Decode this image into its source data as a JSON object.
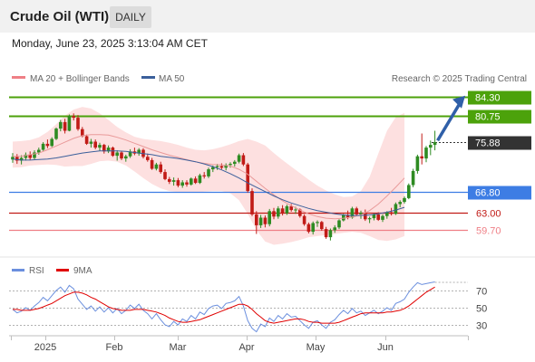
{
  "header": {
    "title": "Crude Oil (WTI)",
    "period": "DAILY",
    "datetime": "Monday, June 23, 2025 3:13:04 AM CET"
  },
  "legend": {
    "ma20": "MA 20 + Bollinger Bands",
    "ma50": "MA 50",
    "credit": "Research © 2025 Trading Central",
    "rsi": "RSI",
    "ma9": "9MA"
  },
  "colors": {
    "green": "#4ca20b",
    "blue": "#3d7de4",
    "pink": "#ef7f86",
    "red": "#c11b17",
    "ma50": "#3b5f9b",
    "band": "#fde0e0",
    "arrow": "#2f5fa8",
    "rsi": "#6b8fde",
    "ma9": "#e00000"
  },
  "chart_data": [
    {
      "type": "candlestick",
      "title": "Crude Oil (WTI)",
      "period": "DAILY",
      "x_ticks": [
        "2025",
        "Feb",
        "Mar",
        "Apr",
        "May",
        "Jun"
      ],
      "last_price": 75.88,
      "levels": [
        {
          "label": "84.30",
          "value": 84.3,
          "kind": "resistance",
          "color": "#4ca20b",
          "boxed": true
        },
        {
          "label": "80.75",
          "value": 80.75,
          "kind": "resistance",
          "color": "#4ca20b",
          "boxed": true
        },
        {
          "label": "75.88",
          "value": 75.88,
          "kind": "last",
          "color": "#333333",
          "boxed": true
        },
        {
          "label": "66.80",
          "value": 66.8,
          "kind": "pivot",
          "color": "#3d7de4",
          "boxed": true
        },
        {
          "label": "63.00",
          "value": 63.0,
          "kind": "support",
          "color": "#c11b17",
          "boxed": false
        },
        {
          "label": "59.70",
          "value": 59.7,
          "kind": "support",
          "color": "#ef7f86",
          "boxed": false
        }
      ],
      "series": [
        {
          "name": "MA 20 + Bollinger Bands"
        },
        {
          "name": "MA 50"
        }
      ],
      "candles": [
        [
          72.7,
          73.9,
          72.1,
          73.2
        ],
        [
          73.2,
          73.7,
          71.9,
          72.5
        ],
        [
          72.5,
          73.5,
          71.8,
          73.0
        ],
        [
          73.0,
          74.0,
          72.5,
          73.6
        ],
        [
          73.6,
          74.2,
          72.6,
          73.0
        ],
        [
          73.0,
          74.4,
          72.7,
          74.0
        ],
        [
          74.0,
          74.9,
          73.6,
          74.5
        ],
        [
          74.5,
          75.9,
          74.3,
          75.6
        ],
        [
          75.6,
          76.4,
          74.8,
          75.2
        ],
        [
          75.2,
          76.8,
          75.0,
          76.5
        ],
        [
          76.5,
          78.6,
          76.3,
          78.4
        ],
        [
          78.4,
          80.0,
          77.9,
          79.6
        ],
        [
          79.6,
          80.2,
          77.5,
          78.0
        ],
        [
          78.0,
          81.0,
          77.9,
          80.7
        ],
        [
          80.7,
          81.2,
          79.9,
          80.4
        ],
        [
          80.4,
          80.9,
          78.0,
          78.3
        ],
        [
          78.3,
          78.7,
          76.8,
          77.0
        ],
        [
          77.0,
          77.3,
          75.4,
          75.6
        ],
        [
          75.6,
          76.5,
          74.9,
          76.0
        ],
        [
          76.0,
          76.4,
          74.6,
          74.9
        ],
        [
          74.9,
          75.8,
          74.3,
          75.4
        ],
        [
          75.4,
          75.6,
          73.8,
          74.2
        ],
        [
          74.2,
          75.3,
          73.9,
          74.9
        ],
        [
          74.9,
          75.1,
          73.2,
          73.4
        ],
        [
          73.4,
          74.4,
          72.5,
          74.0
        ],
        [
          74.0,
          74.3,
          72.6,
          72.9
        ],
        [
          72.9,
          73.6,
          72.3,
          73.3
        ],
        [
          73.3,
          74.6,
          73.0,
          74.2
        ],
        [
          74.2,
          74.9,
          73.5,
          73.8
        ],
        [
          73.8,
          74.8,
          73.4,
          74.5
        ],
        [
          74.5,
          74.8,
          72.9,
          73.2
        ],
        [
          73.2,
          73.8,
          72.3,
          72.6
        ],
        [
          72.6,
          73.0,
          70.8,
          71.0
        ],
        [
          71.0,
          72.1,
          70.7,
          71.8
        ],
        [
          71.8,
          72.3,
          70.1,
          70.4
        ],
        [
          70.4,
          70.9,
          68.9,
          69.1
        ],
        [
          69.1,
          69.5,
          68.2,
          68.6
        ],
        [
          68.6,
          69.4,
          67.9,
          68.9
        ],
        [
          68.9,
          69.3,
          67.6,
          67.9
        ],
        [
          67.9,
          68.9,
          67.5,
          68.5
        ],
        [
          68.5,
          68.9,
          67.7,
          68.1
        ],
        [
          68.1,
          69.4,
          67.9,
          69.2
        ],
        [
          69.2,
          69.6,
          68.2,
          68.4
        ],
        [
          68.4,
          70.1,
          68.2,
          69.8
        ],
        [
          69.8,
          70.4,
          69.2,
          69.6
        ],
        [
          69.6,
          71.2,
          69.3,
          70.9
        ],
        [
          70.9,
          71.6,
          70.4,
          71.3
        ],
        [
          71.3,
          71.9,
          70.8,
          71.5
        ],
        [
          71.5,
          72.0,
          70.9,
          71.2
        ],
        [
          71.2,
          72.0,
          70.7,
          71.7
        ],
        [
          71.7,
          72.2,
          71.2,
          71.9
        ],
        [
          71.9,
          72.6,
          71.4,
          72.3
        ],
        [
          72.3,
          73.8,
          72.0,
          73.5
        ],
        [
          73.5,
          73.9,
          71.5,
          71.8
        ],
        [
          71.8,
          72.1,
          66.6,
          66.9
        ],
        [
          66.9,
          67.4,
          62.3,
          62.6
        ],
        [
          62.6,
          63.2,
          59.0,
          60.6
        ],
        [
          60.6,
          62.5,
          60.1,
          62.0
        ],
        [
          62.0,
          62.4,
          60.2,
          60.8
        ],
        [
          60.8,
          63.6,
          60.4,
          63.2
        ],
        [
          63.2,
          63.8,
          61.7,
          62.2
        ],
        [
          62.2,
          64.1,
          61.8,
          63.7
        ],
        [
          63.7,
          64.3,
          62.4,
          62.8
        ],
        [
          62.8,
          64.4,
          62.5,
          64.1
        ],
        [
          64.1,
          64.5,
          63.1,
          63.4
        ],
        [
          63.4,
          64.0,
          62.7,
          63.5
        ],
        [
          63.5,
          63.7,
          62.0,
          62.3
        ],
        [
          62.3,
          62.6,
          60.5,
          60.8
        ],
        [
          60.8,
          61.1,
          59.1,
          59.4
        ],
        [
          59.4,
          61.3,
          58.9,
          61.0
        ],
        [
          61.0,
          61.5,
          60.3,
          61.2
        ],
        [
          61.2,
          61.4,
          59.6,
          59.9
        ],
        [
          59.9,
          60.3,
          58.1,
          58.4
        ],
        [
          58.4,
          60.0,
          57.8,
          59.7
        ],
        [
          59.7,
          60.6,
          59.2,
          60.2
        ],
        [
          60.2,
          61.7,
          59.9,
          61.5
        ],
        [
          61.5,
          62.7,
          61.3,
          62.5
        ],
        [
          62.5,
          63.3,
          61.7,
          62.0
        ],
        [
          62.0,
          64.0,
          61.8,
          63.7
        ],
        [
          63.7,
          64.0,
          62.3,
          62.6
        ],
        [
          62.6,
          63.3,
          61.8,
          62.9
        ],
        [
          62.9,
          63.5,
          61.4,
          61.7
        ],
        [
          61.7,
          62.2,
          61.0,
          61.9
        ],
        [
          61.9,
          62.8,
          61.5,
          62.6
        ],
        [
          62.6,
          63.0,
          61.4,
          61.6
        ],
        [
          61.6,
          62.6,
          61.2,
          62.3
        ],
        [
          62.3,
          63.2,
          61.8,
          63.0
        ],
        [
          63.0,
          63.8,
          62.4,
          62.7
        ],
        [
          62.7,
          64.8,
          62.5,
          64.5
        ],
        [
          64.5,
          65.2,
          63.9,
          64.9
        ],
        [
          64.9,
          65.9,
          64.6,
          65.6
        ],
        [
          65.6,
          68.3,
          65.4,
          68.0
        ],
        [
          68.0,
          71.0,
          67.6,
          70.6
        ],
        [
          70.6,
          73.6,
          70.1,
          73.3
        ],
        [
          73.3,
          77.5,
          71.8,
          72.9
        ],
        [
          72.9,
          75.2,
          72.2,
          74.9
        ],
        [
          74.9,
          76.2,
          73.5,
          75.4
        ],
        [
          75.4,
          78.0,
          74.4,
          75.9
        ]
      ],
      "bollinger": {
        "x_step": 2,
        "upper": [
          76.0,
          76.1,
          76.3,
          76.8,
          77.8,
          79.2,
          80.8,
          81.9,
          82.4,
          82.1,
          81.2,
          80.0,
          78.7,
          77.7,
          76.9,
          76.5,
          76.3,
          76.1,
          75.8,
          75.4,
          74.9,
          74.5,
          74.4,
          74.6,
          75.0,
          75.5,
          76.1,
          76.5,
          76.0,
          75.3,
          73.9,
          72.6,
          71.4,
          70.2,
          69.0,
          67.9,
          67.0,
          66.3,
          65.8,
          65.9,
          66.9,
          69.5,
          73.8,
          78.0,
          80.5,
          81.3
        ],
        "middle": [
          73.3,
          73.3,
          73.6,
          73.9,
          74.5,
          75.2,
          75.9,
          76.6,
          77.1,
          77.3,
          77.3,
          77.2,
          76.8,
          76.3,
          75.7,
          75.1,
          74.5,
          74.0,
          73.5,
          73.1,
          72.7,
          72.3,
          72.0,
          71.8,
          71.7,
          71.5,
          70.9,
          70.0,
          68.7,
          67.4,
          66.2,
          65.1,
          64.2,
          63.4,
          62.7,
          62.2,
          61.9,
          61.8,
          61.9,
          62.1,
          62.5,
          63.3,
          64.5,
          66.0,
          67.6,
          69.3
        ],
        "lower": [
          71.2,
          71.3,
          71.6,
          71.7,
          71.8,
          71.7,
          71.4,
          71.5,
          71.5,
          71.9,
          72.4,
          72.5,
          72.3,
          71.6,
          70.5,
          69.3,
          68.2,
          67.4,
          66.9,
          66.7,
          66.6,
          66.6,
          66.8,
          66.9,
          66.9,
          66.5,
          65.2,
          62.7,
          59.7,
          57.6,
          57.0,
          57.2,
          57.5,
          57.9,
          58.4,
          58.6,
          58.8,
          59.0,
          59.2,
          59.4,
          59.2,
          58.6,
          57.9,
          57.7,
          58.0,
          58.6
        ]
      },
      "ma50": [
        72.8,
        72.6,
        72.6,
        72.7,
        72.8,
        73.0,
        73.3,
        73.6,
        73.9,
        74.1,
        74.3,
        74.3,
        74.3,
        74.2,
        74.0,
        73.8,
        73.6,
        73.3,
        73.1,
        72.9,
        72.6,
        72.3,
        71.9,
        71.4,
        70.8,
        70.1,
        69.3,
        68.4,
        67.6,
        66.8,
        66.0,
        65.3,
        64.7,
        64.2,
        63.7,
        63.3,
        63.0,
        62.7,
        62.5,
        62.4,
        62.4,
        62.5,
        62.7,
        63.0,
        63.4,
        63.9
      ]
    },
    {
      "type": "line",
      "title": "RSI",
      "y_ticks": [
        70,
        50,
        30
      ],
      "ylim": [
        20,
        85
      ],
      "series": [
        {
          "name": "RSI",
          "values": [
            48,
            44,
            46,
            50,
            47,
            52,
            56,
            62,
            58,
            64,
            70,
            74,
            68,
            76,
            72,
            60,
            54,
            48,
            52,
            46,
            51,
            45,
            50,
            44,
            49,
            43,
            47,
            53,
            49,
            54,
            47,
            43,
            37,
            43,
            36,
            30,
            28,
            34,
            30,
            37,
            34,
            41,
            37,
            45,
            42,
            49,
            52,
            53,
            49,
            55,
            56,
            58,
            63,
            52,
            35,
            26,
            22,
            31,
            28,
            38,
            34,
            41,
            37,
            43,
            39,
            40,
            35,
            30,
            26,
            33,
            35,
            30,
            26,
            33,
            36,
            42,
            47,
            43,
            49,
            44,
            46,
            41,
            44,
            47,
            43,
            46,
            50,
            47,
            55,
            57,
            60,
            68,
            74,
            79,
            77,
            78,
            79,
            80
          ]
        },
        {
          "name": "9MA",
          "values": [
            48,
            48,
            47,
            47,
            47,
            48,
            49,
            51,
            53,
            55,
            58,
            61,
            64,
            66,
            68,
            68,
            67,
            65,
            62,
            60,
            57,
            54,
            51,
            49,
            48,
            47,
            47,
            47,
            48,
            48,
            48,
            47,
            46,
            45,
            43,
            41,
            38,
            36,
            34,
            33,
            33,
            34,
            35,
            36,
            38,
            40,
            42,
            44,
            46,
            48,
            50,
            52,
            54,
            54,
            52,
            48,
            43,
            39,
            35,
            33,
            32,
            33,
            34,
            35,
            36,
            37,
            37,
            36,
            34,
            33,
            33,
            32,
            32,
            32,
            32,
            33,
            35,
            37,
            39,
            41,
            43,
            44,
            44,
            44,
            44,
            44,
            45,
            45,
            46,
            47,
            49,
            52,
            56,
            60,
            64,
            68,
            71,
            74
          ]
        }
      ]
    }
  ]
}
